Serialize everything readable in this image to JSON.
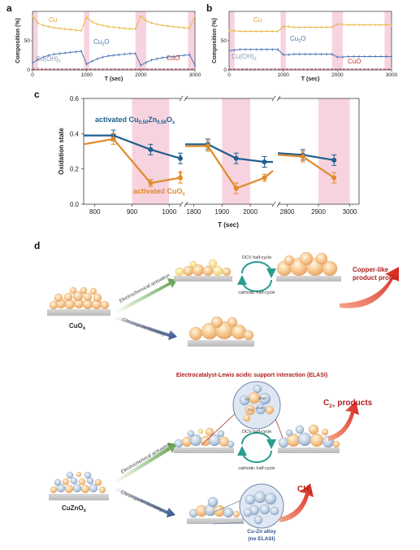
{
  "panel_labels": {
    "a": "a",
    "b": "b",
    "c": "c",
    "d": "d"
  },
  "chart_data": [
    {
      "panel": "a",
      "type": "line",
      "xlabel": "T (sec)",
      "ylabel": "Composition (%)",
      "xlim": [
        0,
        3000
      ],
      "ylim": [
        0,
        100
      ],
      "xticks": [
        0,
        1000,
        2000,
        3000
      ],
      "yticks": [
        0,
        50
      ],
      "shaded_regions": [
        [
          0,
          100
        ],
        [
          950,
          1050
        ],
        [
          1900,
          2100
        ],
        [
          2870,
          3000
        ]
      ],
      "series": [
        {
          "name": "Cu",
          "color": "#e8b940",
          "x": [
            0,
            100,
            200,
            300,
            400,
            500,
            600,
            700,
            800,
            900,
            1000,
            1100,
            1200,
            1300,
            1400,
            1500,
            1600,
            1700,
            1800,
            1900,
            2000,
            2100,
            2200,
            2300,
            2400,
            2500,
            2600,
            2700,
            2800,
            2900,
            3000
          ],
          "y": [
            92,
            80,
            76,
            74,
            72,
            71,
            70,
            69,
            68,
            67,
            90,
            82,
            78,
            76,
            74,
            73,
            72,
            71,
            70,
            70,
            92,
            84,
            80,
            78,
            76,
            75,
            74,
            73,
            72,
            71,
            92
          ]
        },
        {
          "name": "Cu2O",
          "color": "#4a74b4",
          "x": [
            0,
            100,
            200,
            300,
            400,
            500,
            600,
            700,
            800,
            900,
            1000,
            1100,
            1200,
            1300,
            1400,
            1500,
            1600,
            1700,
            1800,
            1900,
            2000,
            2100,
            2200,
            2300,
            2400,
            2500,
            2600,
            2700,
            2800,
            2900,
            3000
          ],
          "y": [
            12,
            18,
            22,
            25,
            27,
            28,
            29,
            30,
            31,
            32,
            10,
            15,
            19,
            22,
            24,
            25,
            26,
            27,
            28,
            28,
            8,
            13,
            17,
            19,
            21,
            22,
            23,
            24,
            25,
            26,
            8
          ]
        },
        {
          "name": "Cu(OH)2",
          "color": "#9aa8c8",
          "x": [
            0,
            500,
            1000,
            1500,
            2000,
            2500,
            3000
          ],
          "y": [
            3,
            2,
            2,
            2,
            2,
            2,
            2
          ]
        },
        {
          "name": "CuO",
          "color": "#c83232",
          "x": [
            0,
            500,
            1000,
            1500,
            2000,
            2500,
            3000
          ],
          "y": [
            1,
            1,
            1,
            1,
            1,
            1,
            1
          ]
        }
      ],
      "labels": {
        "cu": "Cu",
        "cu2o_base": "Cu",
        "cu2o_sub": "2",
        "cu2o_tail": "O",
        "cuoh_base": "Cu(OH)",
        "cuoh_sub": "2",
        "cuo": "CuO"
      }
    },
    {
      "panel": "b",
      "type": "line",
      "xlabel": "T (sec)",
      "ylabel": "Composition (%)",
      "xlim": [
        0,
        3000
      ],
      "ylim": [
        0,
        100
      ],
      "xticks": [
        0,
        1000,
        2000,
        3000
      ],
      "yticks": [
        0,
        50
      ],
      "shaded_regions": [
        [
          0,
          100
        ],
        [
          950,
          1050
        ],
        [
          1900,
          2100
        ],
        [
          2870,
          3000
        ]
      ],
      "series": [
        {
          "name": "Cu",
          "color": "#e8b940",
          "x": [
            0,
            100,
            200,
            300,
            400,
            500,
            600,
            700,
            800,
            900,
            1000,
            1100,
            1200,
            1300,
            1400,
            1500,
            1600,
            1700,
            1800,
            1900,
            2000,
            2100,
            2200,
            2300,
            2400,
            2500,
            2600,
            2700,
            2800,
            2900,
            3000
          ],
          "y": [
            67,
            67,
            66,
            66,
            66,
            66,
            66,
            66,
            66,
            66,
            74,
            74,
            73,
            73,
            73,
            73,
            73,
            73,
            73,
            73,
            78,
            78,
            77,
            77,
            77,
            77,
            77,
            77,
            77,
            77,
            77
          ]
        },
        {
          "name": "Cu2O",
          "color": "#4a74b4",
          "x": [
            0,
            100,
            200,
            300,
            400,
            500,
            600,
            700,
            800,
            900,
            1000,
            1100,
            1200,
            1300,
            1400,
            1500,
            1600,
            1700,
            1800,
            1900,
            2000,
            2100,
            2200,
            2300,
            2400,
            2500,
            2600,
            2700,
            2800,
            2900,
            3000
          ],
          "y": [
            33,
            34,
            35,
            35,
            35,
            35,
            35,
            35,
            35,
            35,
            26,
            26,
            27,
            27,
            27,
            27,
            27,
            27,
            27,
            27,
            22,
            22,
            23,
            23,
            23,
            23,
            23,
            23,
            23,
            23,
            23
          ]
        },
        {
          "name": "Cu(OH)2",
          "color": "#9aa8c8",
          "x": [
            0,
            500,
            1000,
            1500,
            2000,
            2500,
            3000
          ],
          "y": [
            2,
            2,
            2,
            2,
            2,
            2,
            2
          ]
        },
        {
          "name": "CuO",
          "color": "#c83232",
          "x": [
            0,
            500,
            1000,
            1500,
            2000,
            2500,
            3000
          ],
          "y": [
            1,
            1,
            1,
            1,
            1,
            1,
            1
          ]
        }
      ],
      "labels": {
        "cu": "Cu",
        "cu2o_base": "Cu",
        "cu2o_sub": "2",
        "cu2o_tail": "O",
        "cuoh_base": "Cu(OH)",
        "cuoh_sub": "2",
        "cuo": "CuO"
      }
    },
    {
      "panel": "c",
      "type": "line",
      "xlabel": "T (sec)",
      "ylabel": "Oxidation state",
      "ylim": [
        0,
        0.6
      ],
      "yticks": [
        0.0,
        0.2,
        0.4,
        0.6
      ],
      "broken_x_axis": true,
      "segments": [
        {
          "xlim": [
            770,
            1030
          ],
          "ticks": [
            800,
            900,
            1000
          ],
          "shaded": [
            [
              900,
              1000
            ]
          ]
        },
        {
          "xlim": [
            1770,
            2080
          ],
          "ticks": [
            1800,
            1900,
            2000
          ],
          "shaded": [
            [
              1900,
              2000
            ]
          ]
        },
        {
          "xlim": [
            2770,
            3030
          ],
          "ticks": [
            2800,
            2900,
            3000
          ],
          "shaded": [
            [
              2900,
              3000
            ]
          ]
        }
      ],
      "series": [
        {
          "name": "activated Cu0.50Zn0.50Ox",
          "color": "#1f5f8f",
          "points": [
            [
              770,
              0.39
            ],
            [
              850,
              0.39
            ],
            [
              950,
              0.31
            ],
            [
              1050,
              0.26
            ],
            [
              1030,
              0.28
            ],
            [
              1770,
              0.34
            ],
            [
              1850,
              0.34
            ],
            [
              1950,
              0.26
            ],
            [
              2050,
              0.24
            ],
            [
              2080,
              0.24
            ],
            [
              2770,
              0.29
            ],
            [
              2850,
              0.28
            ],
            [
              2950,
              0.25
            ]
          ],
          "markers": [
            [
              850,
              0.39,
              0.03
            ],
            [
              950,
              0.31,
              0.03
            ],
            [
              1050,
              0.26,
              0.03
            ],
            [
              1850,
              0.34,
              0.03
            ],
            [
              1950,
              0.26,
              0.03
            ],
            [
              2050,
              0.24,
              0.03
            ],
            [
              2850,
              0.28,
              0.03
            ],
            [
              2950,
              0.25,
              0.03
            ]
          ]
        },
        {
          "name": "activated CuOx",
          "color": "#e08a2a",
          "points": [
            [
              770,
              0.34
            ],
            [
              850,
              0.37
            ],
            [
              950,
              0.12
            ],
            [
              1050,
              0.15
            ],
            [
              1030,
              0.19
            ],
            [
              1770,
              0.33
            ],
            [
              1850,
              0.33
            ],
            [
              1950,
              0.09
            ],
            [
              2050,
              0.15
            ],
            [
              2080,
              0.19
            ],
            [
              2770,
              0.28
            ],
            [
              2850,
              0.27
            ],
            [
              2950,
              0.15
            ]
          ],
          "markers": [
            [
              850,
              0.37,
              0.03
            ],
            [
              950,
              0.12,
              0.02
            ],
            [
              1050,
              0.15,
              0.03
            ],
            [
              1850,
              0.33,
              0.03
            ],
            [
              1950,
              0.09,
              0.03
            ],
            [
              2050,
              0.15,
              0.02
            ],
            [
              2850,
              0.27,
              0.03
            ],
            [
              2950,
              0.15,
              0.03
            ]
          ]
        }
      ],
      "legend": {
        "cuzn_base": "activated Cu",
        "cuzn_s1": "0.50",
        "cuzn_mid": "Zn",
        "cuzn_s2": "0.50",
        "cuzn_tail": "O",
        "cuzn_s3": "x",
        "cuo_base": "activated CuO",
        "cuo_s": "x"
      }
    }
  ],
  "diagram": {
    "cuox_label": "CuO",
    "cuox_sub": "x",
    "cuznox_label": "CuZnO",
    "cuznox_sub": "x",
    "electrochemical_activation": "Electrochemical activation",
    "chronopotentiometry": "Chronopotentiometry",
    "ocv_half_cycle": "OCV half-cycle",
    "cathodic_half_cycle": "cathodic half-cycle",
    "copper_like_line1": "Copper-like",
    "copper_like_line2": "product profile",
    "elasi_title": "Electrocatalyst-Lewis acidic support interaction (ELASI)",
    "c2_base": "C",
    "c2_sub": "2+",
    "c2_tail": " products",
    "ch4_base": "CH",
    "ch4_sub": "4",
    "alloy_line1": "Cu-Zn alloy",
    "alloy_line2": "(no ELASI)",
    "cu_label": "Cu",
    "zno_label": "ZnO"
  },
  "colors": {
    "cu": "#e8b940",
    "cu2o": "#4a74b4",
    "cuoh2": "#9aa8c8",
    "cuo": "#c83232",
    "cuzn_series": "#1f5f8f",
    "cuo_series": "#e08a2a",
    "shade": "#f7d3e0",
    "green_arrow": "#6aa84f",
    "blue_arrow": "#2f4f8f",
    "red_text": "#b01e1e",
    "cycle": "#2a9d8f"
  }
}
